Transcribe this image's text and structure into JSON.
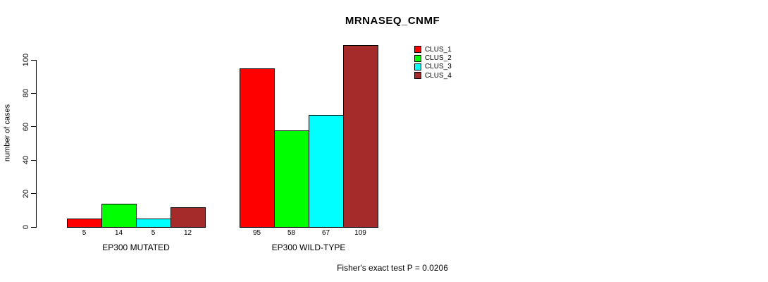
{
  "title": "MRNASEQ_CNMF",
  "footer": "Fisher's exact test P = 0.0206",
  "chart_data": {
    "type": "bar",
    "grouped": true,
    "title": "MRNASEQ_CNMF",
    "categories": [
      "EP300 MUTATED",
      "EP300 WILD-TYPE"
    ],
    "series": [
      {
        "name": "CLUS_1",
        "color": "#FF0000",
        "values": [
          5,
          95
        ]
      },
      {
        "name": "CLUS_2",
        "color": "#00FF00",
        "values": [
          14,
          58
        ]
      },
      {
        "name": "CLUS_3",
        "color": "#00FFFF",
        "values": [
          5,
          67
        ]
      },
      {
        "name": "CLUS_4",
        "color": "#A52A2A",
        "values": [
          12,
          109
        ]
      }
    ],
    "xlabel": "",
    "ylabel": "number of cases",
    "ylim": [
      0,
      100
    ],
    "yticks": [
      0,
      20,
      40,
      60,
      80,
      100
    ],
    "bar_value_labels": true,
    "legend_position": "top-right",
    "grid": false,
    "annotation": "Fisher's exact test P = 0.0206"
  }
}
